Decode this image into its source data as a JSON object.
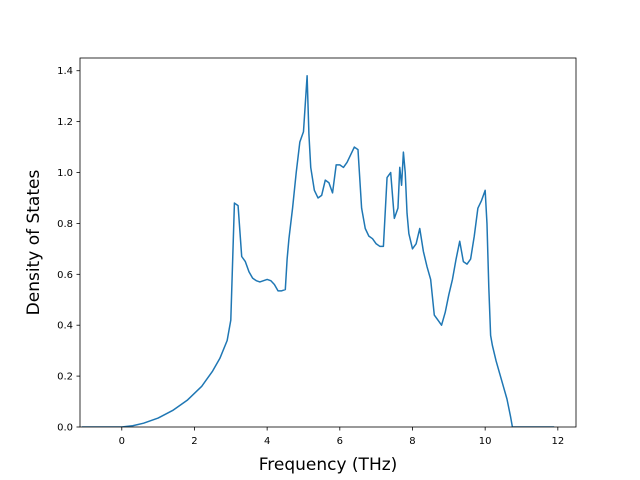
{
  "chart_data": {
    "type": "line",
    "title": "",
    "xlabel": "Frequency (THz)",
    "ylabel": "Density of States",
    "xlim": [
      -1.15,
      12.5
    ],
    "ylim": [
      0,
      1.45
    ],
    "xticks": [
      0,
      2,
      4,
      6,
      8,
      10,
      12
    ],
    "xtick_labels": [
      "0",
      "2",
      "4",
      "6",
      "8",
      "10",
      "12"
    ],
    "yticks": [
      0,
      0.2,
      0.4,
      0.6,
      0.8,
      1.0,
      1.2,
      1.4
    ],
    "ytick_labels": [
      "0.0",
      "0.2",
      "0.4",
      "0.6",
      "0.8",
      "1.0",
      "1.2",
      "1.4"
    ],
    "grid": false,
    "color": "#1f77b4",
    "series": [
      {
        "x": [
          -1.1,
          0.0,
          0.3,
          0.6,
          1.0,
          1.4,
          1.8,
          2.2,
          2.5,
          2.7,
          2.9,
          3.0,
          3.1,
          3.2,
          3.3,
          3.4,
          3.5,
          3.6,
          3.7,
          3.8,
          3.9,
          4.0,
          4.1,
          4.2,
          4.3,
          4.4,
          4.5,
          4.55,
          4.6,
          4.7,
          4.8,
          4.9,
          5.0,
          5.1,
          5.15,
          5.2,
          5.3,
          5.4,
          5.5,
          5.6,
          5.7,
          5.8,
          5.9,
          6.0,
          6.1,
          6.2,
          6.3,
          6.4,
          6.5,
          6.6,
          6.7,
          6.8,
          6.9,
          7.0,
          7.1,
          7.2,
          7.3,
          7.4,
          7.5,
          7.6,
          7.65,
          7.7,
          7.75,
          7.8,
          7.85,
          7.9,
          8.0,
          8.1,
          8.2,
          8.3,
          8.4,
          8.5,
          8.6,
          8.7,
          8.8,
          8.9,
          9.0,
          9.1,
          9.2,
          9.3,
          9.4,
          9.5,
          9.6,
          9.7,
          9.8,
          9.9,
          10.0,
          10.05,
          10.1,
          10.15,
          10.2,
          10.3,
          10.4,
          10.5,
          10.6,
          10.7,
          10.75,
          10.8,
          11.0,
          11.9
        ],
        "y": [
          0.0,
          0.0,
          0.005,
          0.015,
          0.035,
          0.065,
          0.105,
          0.16,
          0.22,
          0.27,
          0.34,
          0.42,
          0.88,
          0.87,
          0.67,
          0.65,
          0.61,
          0.585,
          0.575,
          0.57,
          0.575,
          0.58,
          0.575,
          0.56,
          0.535,
          0.535,
          0.54,
          0.66,
          0.74,
          0.86,
          1.0,
          1.12,
          1.16,
          1.38,
          1.15,
          1.02,
          0.93,
          0.9,
          0.91,
          0.97,
          0.96,
          0.92,
          1.03,
          1.03,
          1.02,
          1.04,
          1.07,
          1.1,
          1.09,
          0.86,
          0.78,
          0.75,
          0.74,
          0.72,
          0.71,
          0.71,
          0.98,
          1.0,
          0.82,
          0.86,
          1.02,
          0.95,
          1.08,
          1.0,
          0.84,
          0.76,
          0.7,
          0.72,
          0.78,
          0.69,
          0.63,
          0.58,
          0.44,
          0.42,
          0.4,
          0.45,
          0.52,
          0.58,
          0.66,
          0.73,
          0.65,
          0.64,
          0.66,
          0.75,
          0.86,
          0.89,
          0.93,
          0.8,
          0.55,
          0.36,
          0.32,
          0.26,
          0.21,
          0.16,
          0.11,
          0.04,
          0.0,
          0.0,
          0.0,
          0.0
        ]
      }
    ]
  }
}
